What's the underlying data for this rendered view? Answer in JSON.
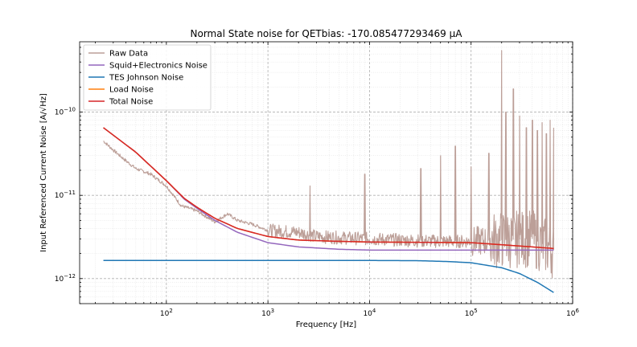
{
  "chart_data": {
    "type": "line",
    "title": "Normal State noise for QETbias: -170.085477293469 μA",
    "xlabel": "Frequency [Hz]",
    "ylabel": "Input Referenced Current Noise [A/√Hz]",
    "x_scale": "log",
    "y_scale": "log",
    "xlim": [
      14,
      1000000
    ],
    "ylim": [
      5e-13,
      7e-10
    ],
    "x_ticks": [
      {
        "value": 100,
        "label": "10",
        "exp": "2"
      },
      {
        "value": 1000,
        "label": "10",
        "exp": "3"
      },
      {
        "value": 10000,
        "label": "10",
        "exp": "4"
      },
      {
        "value": 100000,
        "label": "10",
        "exp": "5"
      },
      {
        "value": 1000000,
        "label": "10",
        "exp": "6"
      }
    ],
    "y_ticks": [
      {
        "value": 1e-12,
        "label": "10",
        "exp": "−12"
      },
      {
        "value": 1e-11,
        "label": "10",
        "exp": "−11"
      },
      {
        "value": 1e-10,
        "label": "10",
        "exp": "−10"
      }
    ],
    "grid": true,
    "legend_position": "top-left",
    "series": [
      {
        "name": "Raw Data",
        "color": "#bc9f98",
        "kind": "raw",
        "points": [
          [
            24,
            4.5e-11
          ],
          [
            30,
            3.5e-11
          ],
          [
            40,
            2.6e-11
          ],
          [
            50,
            2.1e-11
          ],
          [
            70,
            1.8e-11
          ],
          [
            100,
            1.3e-11
          ],
          [
            140,
            7.5e-12
          ],
          [
            200,
            6.5e-12
          ],
          [
            300,
            4.8e-12
          ],
          [
            400,
            6e-12
          ],
          [
            500,
            5e-12
          ],
          [
            700,
            4.5e-12
          ],
          [
            1000,
            3.8e-12
          ],
          [
            2000,
            3.6e-12
          ],
          [
            3000,
            3.2e-12
          ],
          [
            5000,
            3.1e-12
          ],
          [
            10000,
            3e-12
          ],
          [
            20000,
            2.9e-12
          ],
          [
            50000,
            2.8e-12
          ],
          [
            100000,
            2.8e-12
          ],
          [
            200000,
            2.9e-12
          ],
          [
            400000,
            3e-12
          ],
          [
            650000,
            2.2e-12
          ]
        ],
        "spikes": [
          [
            2600,
            1.3e-11
          ],
          [
            9000,
            1.8e-11
          ],
          [
            32000,
            2.1e-11
          ],
          [
            50000,
            3e-11
          ],
          [
            70000,
            3.9e-11
          ],
          [
            100000,
            2.2e-11
          ],
          [
            150000,
            3.2e-11
          ],
          [
            200000,
            5.5e-10
          ],
          [
            220000,
            1e-10
          ],
          [
            260000,
            1.9e-10
          ],
          [
            300000,
            9e-11
          ],
          [
            350000,
            6.5e-11
          ],
          [
            400000,
            8e-11
          ],
          [
            450000,
            6e-11
          ],
          [
            500000,
            7.5e-11
          ],
          [
            550000,
            5.5e-11
          ],
          [
            600000,
            8e-11
          ],
          [
            650000,
            6.5e-11
          ]
        ]
      },
      {
        "name": "Squid+Electronics Noise",
        "color": "#9467bd",
        "kind": "line",
        "points": [
          [
            24,
            6.5e-11
          ],
          [
            50,
            3.3e-11
          ],
          [
            100,
            1.5e-11
          ],
          [
            150,
            9e-12
          ],
          [
            200,
            7e-12
          ],
          [
            300,
            5e-12
          ],
          [
            500,
            3.6e-12
          ],
          [
            1000,
            2.7e-12
          ],
          [
            2000,
            2.4e-12
          ],
          [
            5000,
            2.25e-12
          ],
          [
            10000,
            2.2e-12
          ],
          [
            100000,
            2.2e-12
          ],
          [
            650000,
            2.2e-12
          ]
        ]
      },
      {
        "name": "TES Johnson Noise",
        "color": "#1f77b4",
        "kind": "line",
        "points": [
          [
            24,
            1.65e-12
          ],
          [
            1000,
            1.65e-12
          ],
          [
            10000,
            1.65e-12
          ],
          [
            30000,
            1.64e-12
          ],
          [
            60000,
            1.6e-12
          ],
          [
            100000,
            1.55e-12
          ],
          [
            200000,
            1.35e-12
          ],
          [
            300000,
            1.15e-12
          ],
          [
            450000,
            9e-13
          ],
          [
            650000,
            6.8e-13
          ]
        ]
      },
      {
        "name": "Load Noise",
        "color": "#ff7f0e",
        "kind": "line",
        "points": [
          [
            24,
            6.5e-11
          ],
          [
            50,
            3.3e-11
          ],
          [
            100,
            1.5e-11
          ],
          [
            150,
            9.2e-12
          ],
          [
            200,
            7.2e-12
          ],
          [
            300,
            5.3e-12
          ],
          [
            500,
            4e-12
          ],
          [
            1000,
            3.2e-12
          ],
          [
            2000,
            2.9e-12
          ],
          [
            5000,
            2.8e-12
          ],
          [
            10000,
            2.75e-12
          ],
          [
            100000,
            2.7e-12
          ],
          [
            200000,
            2.55e-12
          ],
          [
            400000,
            2.4e-12
          ],
          [
            650000,
            2.3e-12
          ]
        ]
      },
      {
        "name": "Total Noise",
        "color": "#d62728",
        "kind": "line",
        "points": [
          [
            24,
            6.5e-11
          ],
          [
            50,
            3.3e-11
          ],
          [
            100,
            1.5e-11
          ],
          [
            150,
            9.2e-12
          ],
          [
            200,
            7.2e-12
          ],
          [
            300,
            5.3e-12
          ],
          [
            500,
            4e-12
          ],
          [
            1000,
            3.2e-12
          ],
          [
            2000,
            2.9e-12
          ],
          [
            5000,
            2.8e-12
          ],
          [
            10000,
            2.75e-12
          ],
          [
            100000,
            2.7e-12
          ],
          [
            200000,
            2.55e-12
          ],
          [
            400000,
            2.4e-12
          ],
          [
            650000,
            2.3e-12
          ]
        ]
      }
    ]
  }
}
